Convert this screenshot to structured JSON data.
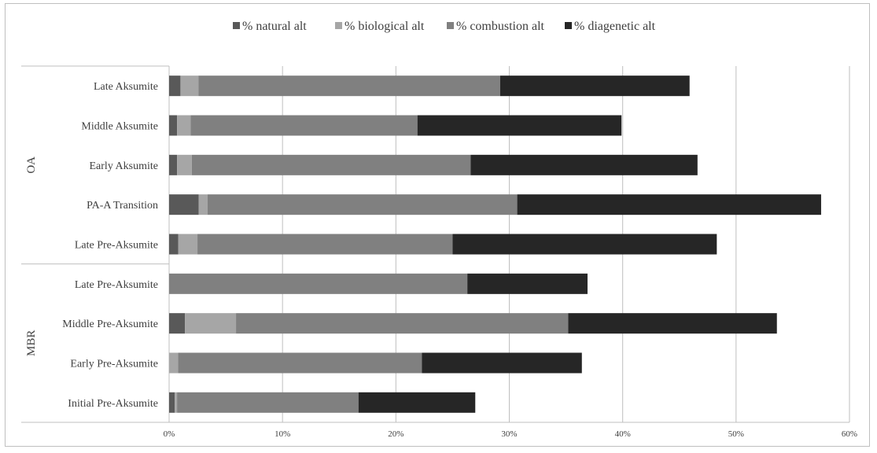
{
  "chart_data": {
    "type": "bar",
    "orientation": "horizontal",
    "stacked": true,
    "legend_position": "top",
    "grid": true,
    "xlim": [
      0,
      60
    ],
    "x_ticks": [
      "0%",
      "10%",
      "20%",
      "30%",
      "40%",
      "50%",
      "60%"
    ],
    "groups": [
      {
        "label": "OA",
        "categories": [
          "Late Aksumite",
          "Middle Aksumite",
          "Early Aksumite",
          "PA-A Transition",
          "Late Pre-Aksumite"
        ]
      },
      {
        "label": "MBR",
        "categories": [
          "Late Pre-Aksumite",
          "Middle Pre-Aksumite",
          "Early Pre-Aksumite",
          "Initial Pre-Aksumite"
        ]
      }
    ],
    "categories": [
      "Late Aksumite",
      "Middle Aksumite",
      "Early Aksumite",
      "PA-A Transition",
      "Late Pre-Aksumite",
      "Late Pre-Aksumite",
      "Middle Pre-Aksumite",
      "Early Pre-Aksumite",
      "Initial Pre-Aksumite"
    ],
    "series": [
      {
        "name": "% natural alt",
        "color": "#595959",
        "values": [
          1.0,
          0.7,
          0.7,
          2.6,
          0.8,
          0.0,
          1.4,
          0.0,
          0.5
        ]
      },
      {
        "name": "% biological alt",
        "color": "#a6a6a6",
        "values": [
          1.6,
          1.2,
          1.3,
          0.8,
          1.7,
          0.0,
          4.5,
          0.8,
          0.2
        ]
      },
      {
        "name": "% combustion alt",
        "color": "#808080",
        "values": [
          26.6,
          20.0,
          24.6,
          27.3,
          22.5,
          26.3,
          29.3,
          21.5,
          16.0
        ]
      },
      {
        "name": "% diagenetic alt",
        "color": "#262626",
        "values": [
          16.7,
          18.0,
          20.0,
          26.8,
          23.3,
          10.6,
          18.4,
          14.1,
          10.3
        ]
      }
    ]
  },
  "colors": {
    "gridline": "#bfbfbf",
    "axis": "#bfbfbf"
  }
}
